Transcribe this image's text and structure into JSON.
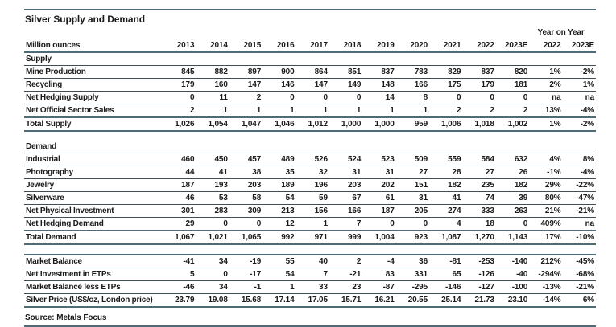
{
  "chart_data": {
    "type": "table",
    "title": "Silver Supply and Demand",
    "row_header_label": "Million ounces",
    "column_group_label": "Year on Year",
    "year_columns": [
      "2013",
      "2014",
      "2015",
      "2016",
      "2017",
      "2018",
      "2019",
      "2020",
      "2021",
      "2022",
      "2023E"
    ],
    "yoy_columns": [
      "2022",
      "2023E"
    ],
    "rows": [
      {
        "type": "section",
        "label": "Supply"
      },
      {
        "type": "data",
        "label": "Mine Production",
        "values": [
          "845",
          "882",
          "897",
          "900",
          "864",
          "851",
          "837",
          "783",
          "829",
          "837",
          "820",
          "1%",
          "-2%"
        ]
      },
      {
        "type": "data",
        "label": "Recycling",
        "values": [
          "179",
          "160",
          "147",
          "146",
          "147",
          "149",
          "148",
          "166",
          "175",
          "179",
          "181",
          "2%",
          "1%"
        ]
      },
      {
        "type": "data",
        "label": "Net Hedging Supply",
        "values": [
          "0",
          "11",
          "2",
          "0",
          "0",
          "0",
          "14",
          "8",
          "0",
          "0",
          "0",
          "na",
          "na"
        ]
      },
      {
        "type": "data",
        "label": "Net Official Sector Sales",
        "values": [
          "2",
          "1",
          "1",
          "1",
          "1",
          "1",
          "1",
          "1",
          "2",
          "2",
          "2",
          "13%",
          "-4%"
        ]
      },
      {
        "type": "total",
        "label": "Total Supply",
        "values": [
          "1,026",
          "1,054",
          "1,047",
          "1,046",
          "1,012",
          "1,000",
          "1,000",
          "959",
          "1,006",
          "1,018",
          "1,002",
          "1%",
          "-2%"
        ]
      },
      {
        "type": "spacer"
      },
      {
        "type": "section",
        "label": "Demand"
      },
      {
        "type": "data",
        "label": "Industrial",
        "values": [
          "460",
          "450",
          "457",
          "489",
          "526",
          "524",
          "523",
          "509",
          "559",
          "584",
          "632",
          "4%",
          "8%"
        ]
      },
      {
        "type": "data",
        "label": "Photography",
        "values": [
          "44",
          "41",
          "38",
          "35",
          "32",
          "31",
          "31",
          "27",
          "28",
          "27",
          "26",
          "-1%",
          "-4%"
        ]
      },
      {
        "type": "data",
        "label": "Jewelry",
        "values": [
          "187",
          "193",
          "203",
          "189",
          "196",
          "203",
          "202",
          "151",
          "182",
          "235",
          "182",
          "29%",
          "-22%"
        ]
      },
      {
        "type": "data",
        "label": "Silverware",
        "values": [
          "46",
          "53",
          "58",
          "54",
          "59",
          "67",
          "61",
          "31",
          "41",
          "74",
          "39",
          "80%",
          "-47%"
        ]
      },
      {
        "type": "data",
        "label": "Net Physical Investment",
        "values": [
          "301",
          "283",
          "309",
          "213",
          "156",
          "166",
          "187",
          "205",
          "274",
          "333",
          "263",
          "21%",
          "-21%"
        ]
      },
      {
        "type": "data",
        "label": "Net Hedging Demand",
        "values": [
          "29",
          "0",
          "0",
          "12",
          "1",
          "7",
          "0",
          "0",
          "4",
          "18",
          "0",
          "409%",
          "na"
        ]
      },
      {
        "type": "total",
        "label": "Total Demand",
        "values": [
          "1,067",
          "1,021",
          "1,065",
          "992",
          "971",
          "999",
          "1,004",
          "923",
          "1,087",
          "1,270",
          "1,143",
          "17%",
          "-10%"
        ]
      },
      {
        "type": "spacer-line"
      },
      {
        "type": "data",
        "label": "Market Balance",
        "values": [
          "-41",
          "34",
          "-19",
          "55",
          "40",
          "2",
          "-4",
          "36",
          "-81",
          "-253",
          "-140",
          "212%",
          "-45%"
        ]
      },
      {
        "type": "data",
        "label": "Net Investment in ETPs",
        "values": [
          "5",
          "0",
          "-17",
          "54",
          "7",
          "-21",
          "83",
          "331",
          "65",
          "-126",
          "-40",
          "-294%",
          "-68%"
        ]
      },
      {
        "type": "data",
        "label": "Market Balance less ETPs",
        "values": [
          "-46",
          "34",
          "-1",
          "1",
          "33",
          "23",
          "-87",
          "-295",
          "-146",
          "-127",
          "-100",
          "-13%",
          "-21%"
        ]
      },
      {
        "type": "price",
        "label": "Silver Price (US$/oz, London price)",
        "values": [
          "23.79",
          "19.08",
          "15.68",
          "17.14",
          "17.05",
          "15.71",
          "16.21",
          "20.55",
          "25.14",
          "21.73",
          "23.10",
          "-14%",
          "6%"
        ]
      }
    ],
    "source": "Source: Metals Focus"
  },
  "colors": {
    "thick_border": "#4f6b77",
    "thin_border": "#3f4d55",
    "text": "#1a1a1a",
    "background": "#ffffff"
  }
}
